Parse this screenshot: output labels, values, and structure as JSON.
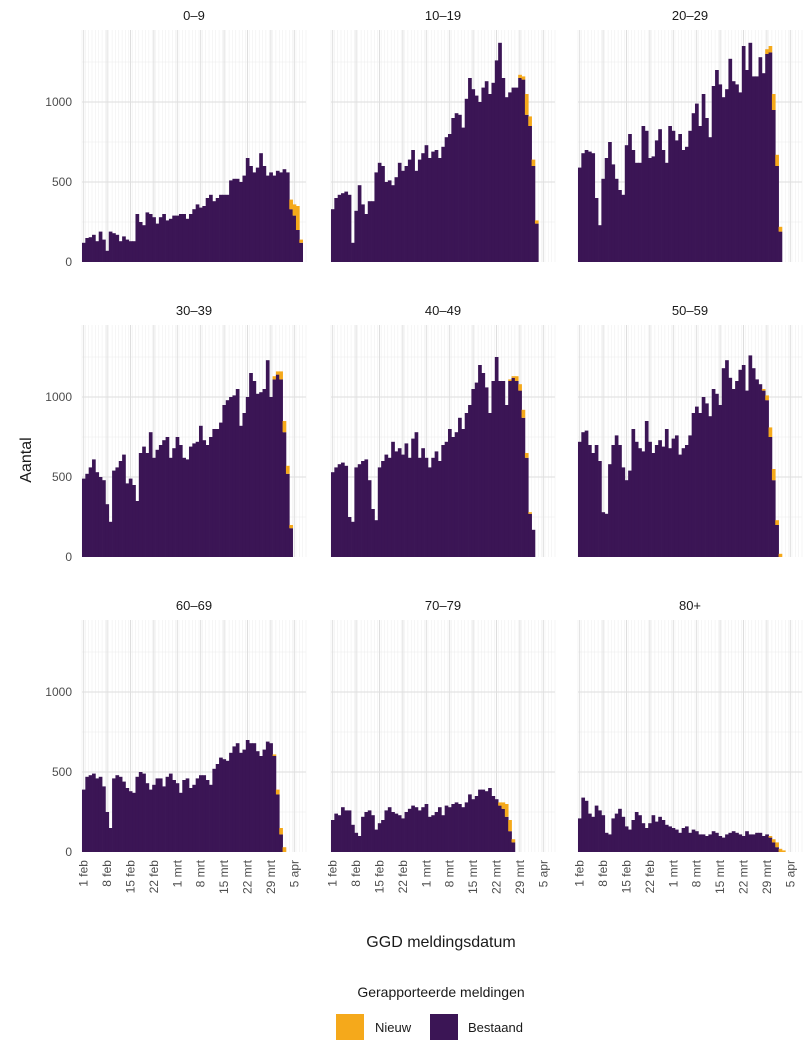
{
  "chart_data": {
    "type": "bar",
    "subtype": "stacked-faceted",
    "xlabel": "GGD meldingsdatum",
    "ylabel": "Aantal",
    "ylim": [
      0,
      1450
    ],
    "yticks": [
      0,
      500,
      1000
    ],
    "xticks": [
      "1 feb",
      "8 feb",
      "15 feb",
      "22 feb",
      "1 mrt",
      "8 mrt",
      "15 mrt",
      "22 mrt",
      "29 mrt",
      "5 apr"
    ],
    "grid": true,
    "legend": {
      "title": "Gerapporteerde meldingen",
      "position": "bottom",
      "items": [
        {
          "name": "Nieuw",
          "color": "#F5A91B"
        },
        {
          "name": "Bestaand",
          "color": "#3B1555"
        }
      ]
    },
    "series_names": [
      "Bestaand",
      "Nieuw"
    ],
    "facets": [
      {
        "title": "0–9",
        "bestaand": [
          120,
          150,
          155,
          170,
          130,
          190,
          140,
          70,
          190,
          180,
          170,
          130,
          160,
          140,
          130,
          130,
          300,
          250,
          230,
          310,
          300,
          280,
          240,
          280,
          300,
          260,
          270,
          290,
          290,
          300,
          300,
          270,
          300,
          330,
          360,
          340,
          350,
          400,
          420,
          380,
          400,
          420,
          420,
          420,
          510,
          520,
          520,
          500,
          540,
          650,
          600,
          560,
          590,
          680,
          600,
          540,
          560,
          540,
          570,
          560,
          580,
          560,
          330,
          290,
          200,
          120,
          0
        ],
        "nieuw": [
          0,
          0,
          0,
          0,
          0,
          0,
          0,
          0,
          0,
          0,
          0,
          0,
          0,
          0,
          0,
          0,
          0,
          0,
          0,
          0,
          0,
          0,
          0,
          0,
          0,
          0,
          0,
          0,
          0,
          0,
          0,
          0,
          0,
          0,
          0,
          0,
          0,
          0,
          0,
          0,
          0,
          0,
          0,
          0,
          0,
          0,
          0,
          0,
          0,
          0,
          0,
          0,
          0,
          0,
          0,
          0,
          0,
          0,
          0,
          0,
          0,
          0,
          60,
          70,
          150,
          20,
          0
        ]
      },
      {
        "title": "10–19",
        "bestaand": [
          330,
          400,
          420,
          430,
          440,
          420,
          120,
          320,
          480,
          360,
          300,
          380,
          380,
          560,
          620,
          600,
          500,
          510,
          480,
          530,
          620,
          570,
          600,
          640,
          700,
          570,
          640,
          680,
          730,
          650,
          690,
          700,
          650,
          720,
          780,
          800,
          900,
          930,
          920,
          840,
          1020,
          1150,
          1080,
          1040,
          1000,
          1090,
          1130,
          1050,
          1120,
          1260,
          1370,
          1150,
          1030,
          1060,
          1090,
          1090,
          1150,
          1140,
          920,
          850,
          600,
          240,
          0,
          0,
          0,
          0,
          0
        ],
        "nieuw": [
          0,
          0,
          0,
          0,
          0,
          0,
          0,
          0,
          0,
          0,
          0,
          0,
          0,
          0,
          0,
          0,
          0,
          0,
          0,
          0,
          0,
          0,
          0,
          0,
          0,
          0,
          0,
          0,
          0,
          0,
          0,
          0,
          0,
          0,
          0,
          0,
          0,
          0,
          0,
          0,
          0,
          0,
          0,
          0,
          0,
          0,
          0,
          0,
          0,
          0,
          0,
          0,
          0,
          0,
          0,
          0,
          20,
          20,
          130,
          60,
          40,
          20,
          0,
          0,
          0,
          0,
          0
        ]
      },
      {
        "title": "20–29",
        "bestaand": [
          590,
          680,
          700,
          690,
          680,
          400,
          230,
          520,
          650,
          750,
          610,
          520,
          450,
          420,
          730,
          800,
          700,
          620,
          620,
          850,
          820,
          650,
          660,
          760,
          830,
          700,
          620,
          850,
          820,
          760,
          800,
          700,
          720,
          820,
          930,
          990,
          850,
          1050,
          900,
          780,
          1100,
          1200,
          1110,
          1030,
          1080,
          1270,
          1130,
          1110,
          1060,
          1350,
          1200,
          1370,
          1160,
          1160,
          1280,
          1180,
          1300,
          1310,
          950,
          600,
          190,
          0,
          0,
          0,
          0,
          0,
          0
        ],
        "nieuw": [
          0,
          0,
          0,
          0,
          0,
          0,
          0,
          0,
          0,
          0,
          0,
          0,
          0,
          0,
          0,
          0,
          0,
          0,
          0,
          0,
          0,
          0,
          0,
          0,
          0,
          0,
          0,
          0,
          0,
          0,
          0,
          0,
          0,
          0,
          0,
          0,
          0,
          0,
          0,
          0,
          0,
          0,
          0,
          0,
          0,
          0,
          0,
          0,
          0,
          0,
          0,
          0,
          0,
          0,
          0,
          0,
          30,
          40,
          100,
          70,
          30,
          0,
          0,
          0,
          0,
          0,
          0
        ]
      },
      {
        "title": "30–39",
        "bestaand": [
          490,
          520,
          560,
          610,
          530,
          500,
          480,
          330,
          220,
          540,
          560,
          600,
          640,
          460,
          490,
          450,
          350,
          650,
          690,
          650,
          780,
          620,
          670,
          700,
          730,
          750,
          620,
          680,
          750,
          700,
          620,
          610,
          690,
          710,
          720,
          820,
          730,
          700,
          750,
          800,
          800,
          840,
          950,
          980,
          1000,
          1010,
          1050,
          820,
          900,
          1000,
          1150,
          1100,
          1020,
          1030,
          1050,
          1230,
          1000,
          1110,
          1140,
          1110,
          780,
          520,
          180,
          0,
          0,
          0,
          0
        ],
        "nieuw": [
          0,
          0,
          0,
          0,
          0,
          0,
          0,
          0,
          0,
          0,
          0,
          0,
          0,
          0,
          0,
          0,
          0,
          0,
          0,
          0,
          0,
          0,
          0,
          0,
          0,
          0,
          0,
          0,
          0,
          0,
          0,
          0,
          0,
          0,
          0,
          0,
          0,
          0,
          0,
          0,
          0,
          0,
          0,
          0,
          0,
          0,
          0,
          0,
          0,
          0,
          0,
          0,
          0,
          0,
          0,
          0,
          0,
          20,
          20,
          50,
          70,
          50,
          20,
          0,
          0,
          0,
          0
        ]
      },
      {
        "title": "40–49",
        "bestaand": [
          530,
          560,
          580,
          590,
          570,
          250,
          220,
          560,
          580,
          600,
          610,
          480,
          300,
          230,
          560,
          600,
          640,
          620,
          720,
          660,
          680,
          640,
          710,
          620,
          740,
          780,
          620,
          680,
          620,
          560,
          620,
          660,
          600,
          700,
          720,
          800,
          750,
          780,
          870,
          800,
          900,
          950,
          1050,
          1090,
          1200,
          1150,
          1060,
          900,
          1100,
          1250,
          1100,
          1100,
          950,
          1100,
          1120,
          1100,
          1040,
          870,
          620,
          270,
          170,
          0,
          0,
          0,
          0,
          0,
          0
        ],
        "nieuw": [
          0,
          0,
          0,
          0,
          0,
          0,
          0,
          0,
          0,
          0,
          0,
          0,
          0,
          0,
          0,
          0,
          0,
          0,
          0,
          0,
          0,
          0,
          0,
          0,
          0,
          0,
          0,
          0,
          0,
          0,
          0,
          0,
          0,
          0,
          0,
          0,
          0,
          0,
          0,
          0,
          0,
          0,
          0,
          0,
          0,
          0,
          0,
          0,
          0,
          0,
          0,
          0,
          0,
          10,
          10,
          30,
          40,
          50,
          30,
          10,
          0,
          0,
          0,
          0,
          0,
          0,
          0
        ]
      },
      {
        "title": "50–59",
        "bestaand": [
          720,
          780,
          790,
          700,
          650,
          700,
          600,
          280,
          270,
          580,
          700,
          760,
          700,
          560,
          480,
          540,
          800,
          720,
          680,
          660,
          850,
          720,
          650,
          700,
          730,
          690,
          800,
          680,
          740,
          760,
          640,
          680,
          700,
          760,
          900,
          940,
          900,
          1000,
          960,
          880,
          1050,
          1020,
          950,
          1180,
          1230,
          1120,
          1050,
          1100,
          1170,
          1200,
          1040,
          1260,
          1180,
          1110,
          1080,
          1040,
          980,
          750,
          480,
          200,
          0,
          0,
          0,
          0,
          0,
          0,
          0
        ],
        "nieuw": [
          0,
          0,
          0,
          0,
          0,
          0,
          0,
          0,
          0,
          0,
          0,
          0,
          0,
          0,
          0,
          0,
          0,
          0,
          0,
          0,
          0,
          0,
          0,
          0,
          0,
          0,
          0,
          0,
          0,
          0,
          0,
          0,
          0,
          0,
          0,
          0,
          0,
          0,
          0,
          0,
          0,
          0,
          0,
          0,
          0,
          0,
          0,
          0,
          0,
          0,
          0,
          0,
          0,
          0,
          0,
          10,
          30,
          60,
          70,
          30,
          20,
          0,
          0,
          0,
          0,
          0,
          0
        ]
      },
      {
        "title": "60–69",
        "bestaand": [
          390,
          470,
          480,
          490,
          460,
          470,
          410,
          250,
          150,
          460,
          480,
          470,
          440,
          400,
          380,
          370,
          470,
          500,
          490,
          430,
          390,
          420,
          460,
          460,
          410,
          470,
          490,
          450,
          430,
          370,
          450,
          460,
          400,
          420,
          460,
          480,
          480,
          450,
          420,
          520,
          550,
          590,
          580,
          570,
          620,
          660,
          680,
          620,
          640,
          700,
          680,
          680,
          630,
          600,
          640,
          690,
          680,
          600,
          360,
          110,
          0,
          0,
          0,
          0,
          0,
          0,
          0
        ],
        "nieuw": [
          0,
          0,
          0,
          0,
          0,
          0,
          0,
          0,
          0,
          0,
          0,
          0,
          0,
          0,
          0,
          0,
          0,
          0,
          0,
          0,
          0,
          0,
          0,
          0,
          0,
          0,
          0,
          0,
          0,
          0,
          0,
          0,
          0,
          0,
          0,
          0,
          0,
          0,
          0,
          0,
          0,
          0,
          0,
          0,
          0,
          0,
          0,
          0,
          0,
          0,
          0,
          0,
          0,
          0,
          0,
          0,
          0,
          10,
          30,
          40,
          30,
          0,
          0,
          0,
          0,
          0,
          0
        ]
      },
      {
        "title": "70–79",
        "bestaand": [
          200,
          240,
          230,
          280,
          260,
          260,
          170,
          120,
          100,
          220,
          250,
          260,
          230,
          140,
          180,
          200,
          260,
          280,
          250,
          240,
          230,
          210,
          250,
          270,
          290,
          280,
          260,
          280,
          300,
          220,
          230,
          250,
          280,
          230,
          290,
          280,
          300,
          310,
          300,
          280,
          310,
          360,
          330,
          350,
          390,
          390,
          380,
          400,
          350,
          330,
          290,
          270,
          220,
          130,
          60,
          0,
          0,
          0,
          0,
          0,
          0,
          0,
          0,
          0,
          0,
          0,
          0
        ],
        "nieuw": [
          0,
          0,
          0,
          0,
          0,
          0,
          0,
          0,
          0,
          0,
          0,
          0,
          0,
          0,
          0,
          0,
          0,
          0,
          0,
          0,
          0,
          0,
          0,
          0,
          0,
          0,
          0,
          0,
          0,
          0,
          0,
          0,
          0,
          0,
          0,
          0,
          0,
          0,
          0,
          0,
          0,
          0,
          0,
          0,
          0,
          0,
          0,
          0,
          0,
          0,
          20,
          40,
          80,
          70,
          20,
          0,
          0,
          0,
          0,
          0,
          0,
          0,
          0,
          0,
          0,
          0,
          0
        ]
      },
      {
        "title": "80+",
        "bestaand": [
          210,
          340,
          320,
          240,
          220,
          290,
          260,
          230,
          120,
          110,
          210,
          240,
          270,
          220,
          160,
          140,
          200,
          250,
          230,
          180,
          150,
          180,
          230,
          190,
          220,
          200,
          170,
          160,
          150,
          140,
          120,
          150,
          160,
          120,
          140,
          130,
          110,
          110,
          100,
          110,
          130,
          120,
          100,
          90,
          110,
          120,
          130,
          120,
          110,
          100,
          130,
          110,
          110,
          120,
          120,
          100,
          110,
          90,
          60,
          30,
          0,
          0,
          0,
          0,
          0,
          0,
          0
        ],
        "nieuw": [
          0,
          0,
          0,
          0,
          0,
          0,
          0,
          0,
          0,
          0,
          0,
          0,
          0,
          0,
          0,
          0,
          0,
          0,
          0,
          0,
          0,
          0,
          0,
          0,
          0,
          0,
          0,
          0,
          0,
          0,
          0,
          0,
          0,
          0,
          0,
          0,
          0,
          0,
          0,
          0,
          0,
          0,
          0,
          0,
          0,
          0,
          0,
          0,
          0,
          0,
          0,
          0,
          0,
          0,
          0,
          0,
          0,
          10,
          20,
          30,
          20,
          10,
          0,
          0,
          0,
          0,
          0
        ]
      }
    ]
  }
}
